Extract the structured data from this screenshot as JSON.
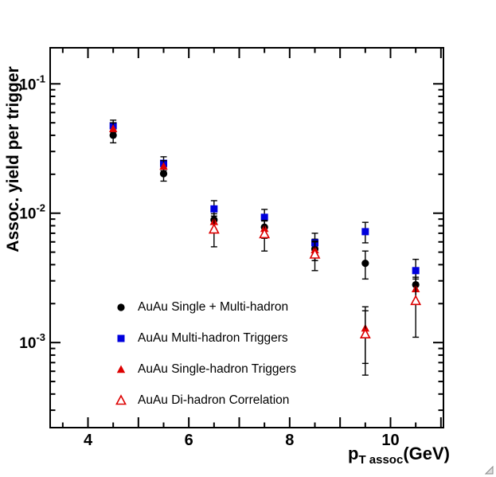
{
  "chart_data": {
    "type": "scatter",
    "title": "",
    "ylabel": "Assoc. yield per trigger",
    "xlabel": {
      "main": "p",
      "sub": "T assoc",
      "unit": "(GeV)"
    },
    "xlim": [
      3.25,
      11.05
    ],
    "ylim": [
      0.00022,
      0.19
    ],
    "yscale": "log",
    "grid": false,
    "xticks": [
      4,
      6,
      8,
      10
    ],
    "ytick_exponents": [
      -1,
      -2,
      -3
    ],
    "legend_position": "lower-left-inside",
    "axis_color": "#000000",
    "series": [
      {
        "name": "AuAu Single + Multi-hadron",
        "marker": "circle",
        "color": "#000000",
        "x": [
          4.5,
          5.5,
          6.5,
          7.5,
          8.5,
          9.5,
          10.5
        ],
        "y": [
          0.04,
          0.0202,
          0.0089,
          0.0078,
          0.0053,
          0.0041,
          0.0028
        ],
        "yerr": [
          0.005,
          0.0025,
          0.0014,
          0.0013,
          0.001,
          0.001,
          0.0007
        ]
      },
      {
        "name": "AuAu Multi-hadron Triggers",
        "marker": "square",
        "color": "#0000dd",
        "x": [
          4.5,
          5.5,
          6.5,
          7.5,
          8.5,
          9.5,
          10.5
        ],
        "y": [
          0.0474,
          0.0243,
          0.0108,
          0.0093,
          0.0059,
          0.0072,
          0.0036
        ],
        "yerr": [
          0.005,
          0.003,
          0.0017,
          0.0014,
          0.0011,
          0.0013,
          0.0008
        ]
      },
      {
        "name": "AuAu Single-hadron Triggers",
        "marker": "triangle",
        "color": "#dd0000",
        "x": [
          4.5,
          5.5,
          6.5,
          7.5,
          8.5,
          9.5,
          10.5
        ],
        "y": [
          0.045,
          0.023,
          0.0086,
          0.0076,
          0.0052,
          0.00129,
          0.0026
        ],
        "yerr": [
          0.005,
          0.0025,
          0.0013,
          0.0012,
          0.0009,
          0.0006,
          0.0006
        ]
      },
      {
        "name": "AuAu Di-hadron Correlation",
        "marker": "triangle-open",
        "color": "#dd0000",
        "x": [
          6.5,
          7.5,
          8.5,
          9.5,
          10.5
        ],
        "y": [
          0.0075,
          0.0069,
          0.0048,
          0.00116,
          0.0021
        ],
        "yerr": [
          0.002,
          0.0018,
          0.0012,
          0.0006,
          0.001
        ]
      }
    ]
  }
}
